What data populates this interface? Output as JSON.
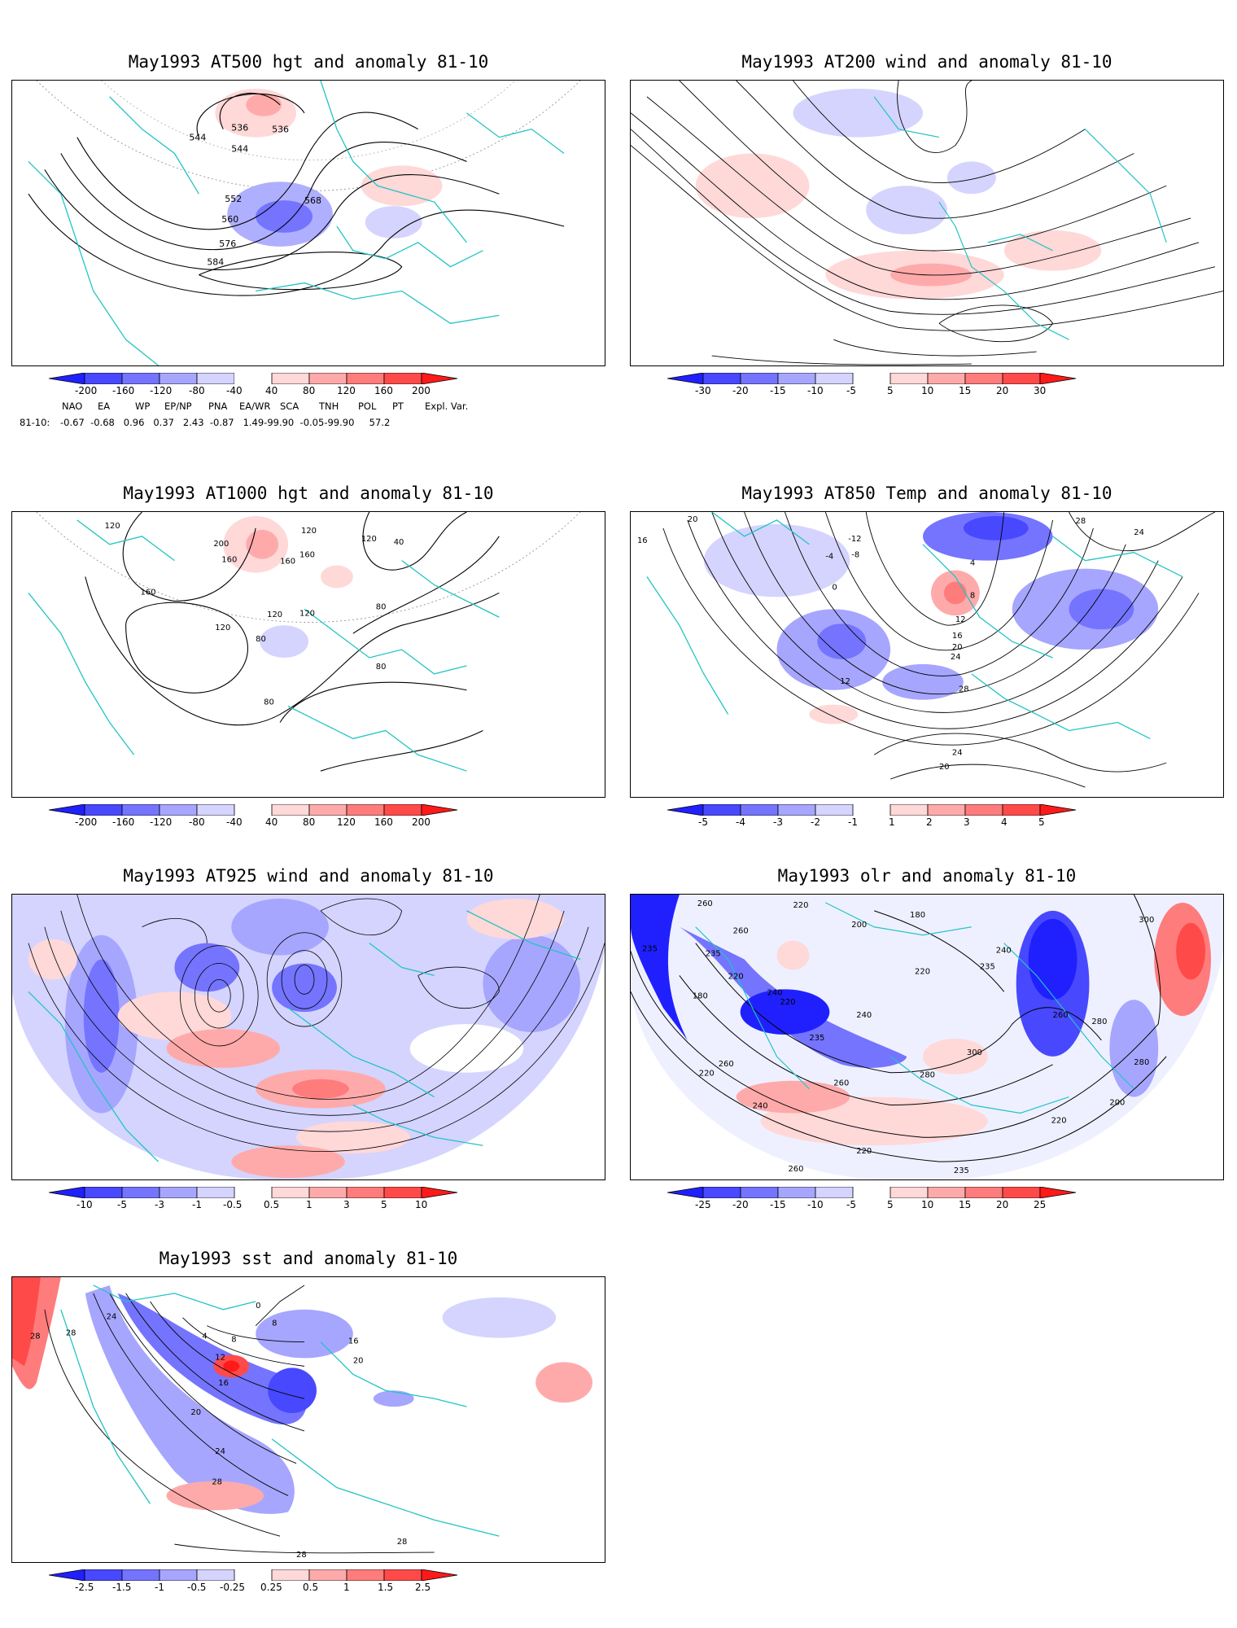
{
  "panels": [
    {
      "id": "p500",
      "title": "May1993 AT500 hgt and anomaly 81-10",
      "colorbar": [
        "-200",
        "-160",
        "-120",
        "-80",
        "-40",
        "40",
        "80",
        "120",
        "160",
        "200"
      ],
      "contour_labels": [
        "544",
        "536",
        "536",
        "544",
        "552",
        "560",
        "568",
        "576",
        "584"
      ]
    },
    {
      "id": "p200",
      "title": "May1993 AT200 wind and anomaly 81-10",
      "colorbar": [
        "-30",
        "-20",
        "-15",
        "-10",
        "-5",
        "5",
        "10",
        "15",
        "20",
        "30"
      ],
      "contour_labels": []
    },
    {
      "id": "p1000",
      "title": "May1993 AT1000 hgt and anomaly 81-10",
      "colorbar": [
        "-200",
        "-160",
        "-120",
        "-80",
        "-40",
        "40",
        "80",
        "120",
        "160",
        "200"
      ],
      "contour_labels": [
        "120",
        "200",
        "160",
        "160",
        "120",
        "160",
        "160",
        "120",
        "120",
        "40",
        "120",
        "120",
        "80",
        "80",
        "80",
        "80"
      ]
    },
    {
      "id": "p850",
      "title": "May1993 AT850 Temp and anomaly 81-10",
      "colorbar": [
        "-5",
        "-4",
        "-3",
        "-2",
        "-1",
        "1",
        "2",
        "3",
        "4",
        "5"
      ],
      "contour_labels": [
        "16",
        "20",
        "-12",
        "-4",
        "-8",
        "0",
        "28",
        "24",
        "4",
        "8",
        "12",
        "16",
        "20",
        "24",
        "12",
        "28",
        "24",
        "20"
      ]
    },
    {
      "id": "p925",
      "title": "May1993 AT925 wind and anomaly 81-10",
      "colorbar": [
        "-10",
        "-5",
        "-3",
        "-1",
        "-0.5",
        "0.5",
        "1",
        "3",
        "5",
        "10"
      ],
      "contour_labels": []
    },
    {
      "id": "polr",
      "title": "May1993 olr and anomaly 81-10",
      "colorbar": [
        "-25",
        "-20",
        "-15",
        "-10",
        "-5",
        "5",
        "10",
        "15",
        "20",
        "25"
      ],
      "contour_labels": [
        "260",
        "220",
        "180",
        "200",
        "300",
        "235",
        "235",
        "260",
        "240",
        "220",
        "235",
        "180",
        "220",
        "240",
        "240",
        "235",
        "220",
        "260",
        "280",
        "300",
        "280",
        "260",
        "260",
        "220",
        "280",
        "200",
        "220",
        "240",
        "220",
        "260",
        "235"
      ]
    },
    {
      "id": "psst",
      "title": "May1993 sst and anomaly 81-10",
      "colorbar": [
        "-2.5",
        "-1.5",
        "-1",
        "-0.5",
        "-0.25",
        "0.25",
        "0.5",
        "1",
        "1.5",
        "2.5"
      ],
      "contour_labels": [
        "28",
        "28",
        "24",
        "4",
        "8",
        "12",
        "16",
        "20",
        "0",
        "8",
        "16",
        "20",
        "24",
        "28",
        "28",
        "28"
      ]
    }
  ],
  "indices": {
    "names": [
      "NAO",
      "EA",
      "WP",
      "EP/NP",
      "PNA",
      "EA/WR",
      "SCA",
      "TNH",
      "POL",
      "PT",
      "Expl. Var."
    ],
    "row_label": "81-10:",
    "values_text": "-0.67  -0.68   0.96   0.37   2.43  -0.87   1.49-99.90  -0.05-99.90     57.2"
  },
  "colors": {
    "blue_dark": "#2020ff",
    "blue2": "#4848ff",
    "blue3": "#7474ff",
    "blue4": "#a6a6ff",
    "blue5": "#d4d4ff",
    "red5": "#ffd8d8",
    "red4": "#ffaaaa",
    "red3": "#ff7c7c",
    "red2": "#ff4a4a",
    "red_dark": "#ff1a1a",
    "coast": "#22c4c4"
  }
}
